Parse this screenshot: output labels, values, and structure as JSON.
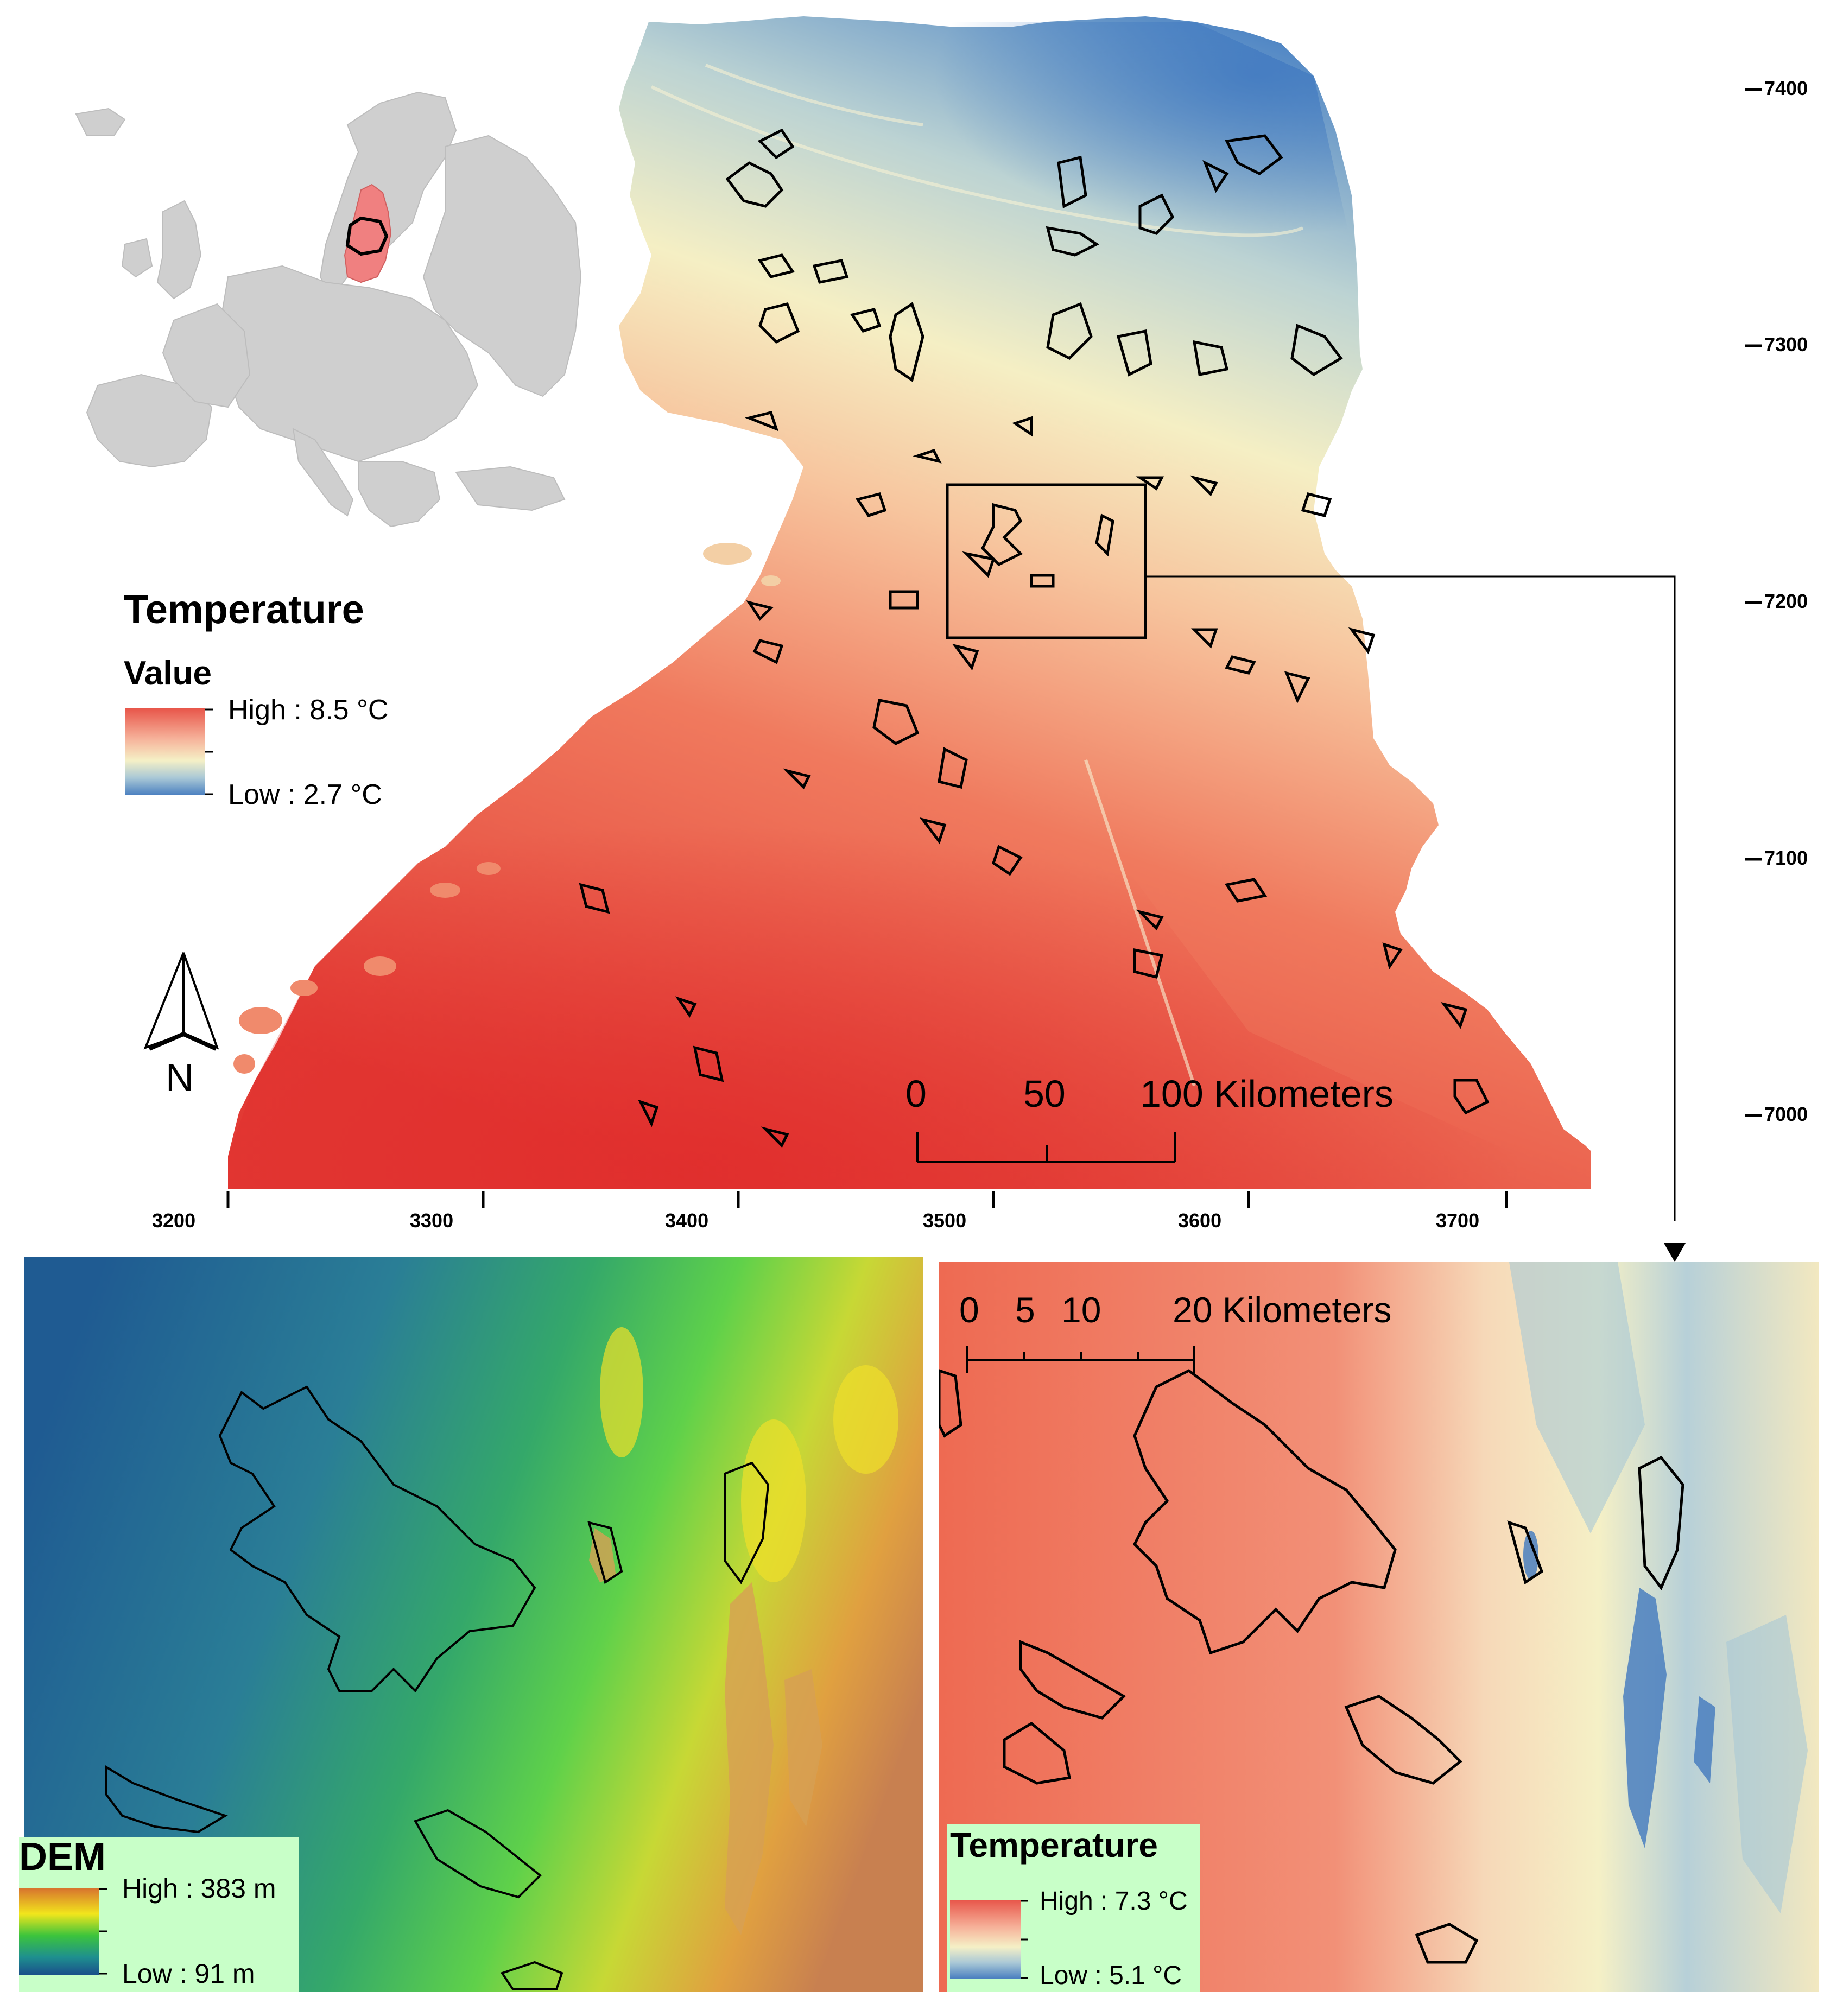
{
  "main_map": {
    "x_ticks": [
      "3200",
      "3300",
      "3400",
      "3500",
      "3600",
      "3700"
    ],
    "y_ticks": [
      "7400",
      "7300",
      "7200",
      "7100",
      "7000"
    ],
    "scale": {
      "labels": [
        "0",
        "50",
        "100 Kilometers"
      ]
    },
    "north_label": "N"
  },
  "legend_main": {
    "title": "Temperature",
    "subtitle": "Value",
    "high": "High : 8.5 °C",
    "low": "Low : 2.7 °C",
    "colors": [
      "#e8564a",
      "#f6b29a",
      "#f5f0c6",
      "#a9c8d6",
      "#4a7fc0"
    ]
  },
  "inset_europe": {
    "land_color": "#cfcfcf",
    "highlight_color": "#f08080"
  },
  "dem_panel": {
    "legend_title": "DEM",
    "high": "High : 383 m",
    "low": "Low : 91 m",
    "colors": [
      "#d7722e",
      "#f2e61c",
      "#3cc43c",
      "#1e8f8f",
      "#1a4f8a"
    ],
    "legend_bg": "#c8ffc8"
  },
  "temp_panel": {
    "scale": {
      "labels": [
        "0",
        "5",
        "10",
        "20 Kilometers"
      ]
    },
    "legend_title": "Temperature",
    "high": "High : 7.3 °C",
    "low": "Low : 5.1 °C",
    "legend_bg": "#c8ffc8"
  }
}
